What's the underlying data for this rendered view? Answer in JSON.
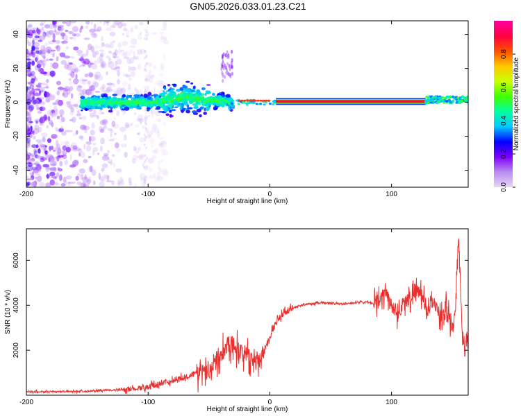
{
  "chart_data": [
    {
      "type": "heatmap",
      "title": "GN05.2026.033.01.23.C21",
      "xlabel": "Height of straight line (km)",
      "ylabel": "Frequency (Hz)",
      "xlim": [
        -200,
        163
      ],
      "ylim": [
        -50,
        48
      ],
      "xticks": [
        -200,
        -100,
        0,
        100
      ],
      "yticks": [
        -40,
        -20,
        0,
        20,
        40
      ],
      "colorbar": {
        "label": "Normalized spectral amplitude",
        "range": [
          0,
          1
        ],
        "ticks": [
          "0.0",
          "0.2",
          "0.4",
          "0.6",
          "0.8"
        ],
        "colors": [
          "#e6d6f7",
          "#b98cf0",
          "#7f00ff",
          "#0000ff",
          "#00c8ff",
          "#00ffa0",
          "#40ff00",
          "#c8ff00",
          "#ffc800",
          "#ff5000",
          "#ff0040",
          "#ff00a0"
        ]
      },
      "segments": [
        {
          "name": "diffuse-noise",
          "x": [
            -200,
            -100
          ],
          "freq_spread": 48,
          "amplitude": 0.12
        },
        {
          "name": "onset-band",
          "x": [
            -155,
            -30
          ],
          "freq_center": 0,
          "freq_spread": 8,
          "amplitude": 0.35
        },
        {
          "name": "blob-burst",
          "x": [
            -40,
            -30
          ],
          "freq_center": 20,
          "freq_spread": 8,
          "amplitude": 0.15
        },
        {
          "name": "steady-carrier",
          "x": [
            5,
            128
          ],
          "freq_center": 0.5,
          "amplitude": 1.0
        },
        {
          "name": "late-band",
          "x": [
            128,
            163
          ],
          "freq_center": 1.5,
          "freq_spread": 2,
          "amplitude": 0.5
        }
      ]
    },
    {
      "type": "line",
      "xlabel": "Height of straight line (km)",
      "ylabel": "SNR (10 * v/v)",
      "xlim": [
        -200,
        163
      ],
      "ylim": [
        0,
        7400
      ],
      "xticks": [
        -200,
        -100,
        0,
        100
      ],
      "yticks": [
        2000,
        4000,
        6000
      ],
      "series": [
        {
          "name": "SNR",
          "color": "#e8302e",
          "x": [
            -200,
            -180,
            -160,
            -140,
            -120,
            -110,
            -100,
            -90,
            -80,
            -70,
            -60,
            -50,
            -45,
            -40,
            -35,
            -30,
            -25,
            -20,
            -15,
            -10,
            -5,
            0,
            5,
            10,
            20,
            30,
            40,
            50,
            60,
            70,
            80,
            85,
            90,
            95,
            100,
            105,
            110,
            115,
            120,
            125,
            130,
            135,
            140,
            145,
            150,
            152,
            155,
            158,
            160,
            163
          ],
          "y": [
            150,
            160,
            170,
            200,
            250,
            300,
            380,
            500,
            650,
            800,
            1000,
            1200,
            1500,
            1900,
            2300,
            2200,
            2000,
            1800,
            1600,
            1500,
            2000,
            2600,
            3200,
            3600,
            3900,
            4050,
            4100,
            4100,
            4050,
            4100,
            4150,
            4050,
            4200,
            4600,
            4000,
            3600,
            4100,
            4300,
            4700,
            4400,
            3800,
            4200,
            3400,
            4000,
            2800,
            3500,
            7200,
            3000,
            1800,
            2700
          ]
        }
      ]
    }
  ]
}
